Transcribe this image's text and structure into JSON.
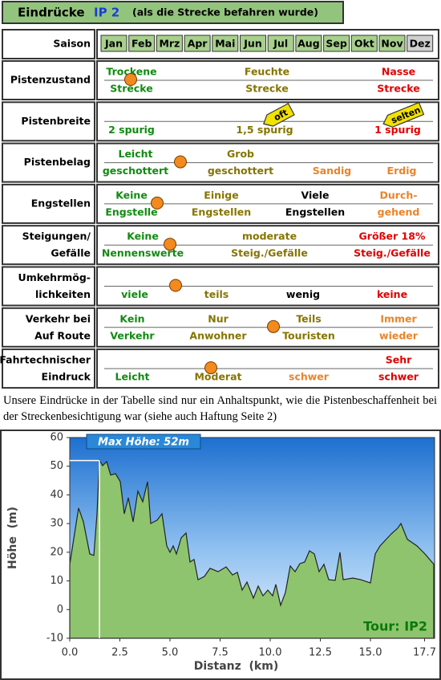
{
  "header": {
    "title": "Eindrücke",
    "route": "IP 2",
    "subtitle": "(als die Strecke befahren wurde)"
  },
  "table": {
    "season": {
      "label": "Saison",
      "months": [
        "Jan",
        "Feb",
        "Mrz",
        "Apr",
        "Mai",
        "Jun",
        "Jul",
        "Aug",
        "Sep",
        "Okt",
        "Nov",
        "Dez"
      ],
      "in_season": [
        true,
        true,
        true,
        true,
        true,
        true,
        true,
        true,
        true,
        true,
        true,
        false
      ]
    },
    "rows": [
      {
        "label": [
          "Pistenzustand"
        ],
        "options": [
          {
            "top": "Trockene",
            "bottom": "Strecke",
            "color": "#118a11"
          },
          {
            "top": "Feuchte",
            "bottom": "Strecke",
            "color": "#857400"
          },
          {
            "top": "Nasse",
            "bottom": "Strecke",
            "color": "#e00000"
          }
        ]
      },
      {
        "label": [
          "Pistenbreite"
        ],
        "options": [
          {
            "bottom": "2 spurig",
            "color": "#118a11"
          },
          {
            "bottom": "1,5 spurig",
            "color": "#857400"
          },
          {
            "bottom": "1 spurig",
            "color": "#e00000"
          }
        ],
        "tags": [
          "oft",
          "selten"
        ]
      },
      {
        "label": [
          "Pistenbelag"
        ],
        "options": [
          {
            "top": "Leicht",
            "bottom": "geschottert",
            "color": "#118a11"
          },
          {
            "top": "Grob",
            "bottom": "geschottert",
            "color": "#857400"
          },
          {
            "bottom": "Sandig",
            "color": "#e8842a"
          },
          {
            "bottom": "Erdig",
            "color": "#e8842a"
          }
        ]
      },
      {
        "label": [
          "Engstellen"
        ],
        "options": [
          {
            "top": "Keine",
            "bottom": "Engstelle",
            "color": "#118a11"
          },
          {
            "top": "Einige",
            "bottom": "Engstellen",
            "color": "#857400"
          },
          {
            "top": "Viele",
            "bottom": "Engstellen",
            "color": "#000000"
          },
          {
            "top": "Durch-",
            "bottom": "gehend",
            "color": "#e8842a"
          }
        ]
      },
      {
        "label": [
          "Steigungen/",
          "Gefälle"
        ],
        "options": [
          {
            "top": "Keine",
            "bottom": "Nennenswerte",
            "color": "#118a11"
          },
          {
            "top": "moderate",
            "bottom": "Steig./Gefälle",
            "color": "#857400"
          },
          {
            "top": "Größer 18%",
            "bottom": "Steig./Gefälle",
            "color": "#e00000"
          }
        ]
      },
      {
        "label": [
          "Umkehrmög-",
          "lichkeiten"
        ],
        "options": [
          {
            "bottom": "viele",
            "color": "#118a11"
          },
          {
            "bottom": "teils",
            "color": "#857400"
          },
          {
            "bottom": "wenig",
            "color": "#000000"
          },
          {
            "bottom": "keine",
            "color": "#e00000"
          }
        ]
      },
      {
        "label": [
          "Verkehr bei",
          "Auf Route"
        ],
        "options": [
          {
            "top": "Kein",
            "bottom": "Verkehr",
            "color": "#118a11"
          },
          {
            "top": "Nur",
            "bottom": "Anwohner",
            "color": "#857400"
          },
          {
            "top": "Teils",
            "bottom": "Touristen",
            "color": "#857400"
          },
          {
            "top": "Immer",
            "bottom": "wieder",
            "color": "#e8842a"
          }
        ]
      },
      {
        "label": [
          "Fahrtechnischer",
          "Eindruck"
        ],
        "options": [
          {
            "bottom": "Leicht",
            "color": "#118a11"
          },
          {
            "bottom": "Moderat",
            "color": "#857400"
          },
          {
            "bottom": "schwer",
            "color": "#e8842a"
          },
          {
            "top": "Sehr",
            "bottom": "schwer",
            "color": "#e00000"
          }
        ]
      }
    ]
  },
  "note": "Unsere Eindrücke in der Tabelle sind nur ein Anhaltspunkt, wie die Pistenbeschaffenheit bei der Streckenbesichtigung war (siehe auch Haftung Seite 2)",
  "chart_data": {
    "type": "area",
    "color": "#8fc46e",
    "x": [
      0,
      0.44,
      0.68,
      1.0,
      1.2,
      1.36,
      1.48,
      1.64,
      1.84,
      2.04,
      2.28,
      2.52,
      2.72,
      2.92,
      3.16,
      3.4,
      3.64,
      3.88,
      4.04,
      4.36,
      4.6,
      4.84,
      5.0,
      5.16,
      5.32,
      5.56,
      5.8,
      6.0,
      6.2,
      6.4,
      6.72,
      7.0,
      7.4,
      7.8,
      8.12,
      8.36,
      8.6,
      8.84,
      9.16,
      9.4,
      9.64,
      9.88,
      10.12,
      10.28,
      10.52,
      10.76,
      11.0,
      11.24,
      11.48,
      11.72,
      11.96,
      12.2,
      12.44,
      12.68,
      12.92,
      13.24,
      13.48,
      13.64,
      14.12,
      14.52,
      15.0,
      15.24,
      15.48,
      16.04,
      16.36,
      16.52,
      16.84,
      17.32,
      17.72,
      18.16
    ],
    "values": [
      15.8,
      35.4,
      30.6,
      19.4,
      18.9,
      33.4,
      52,
      50.2,
      51.6,
      46.9,
      47.4,
      44.6,
      33.4,
      39,
      30.6,
      41.3,
      37.6,
      44.6,
      30,
      31.2,
      33.4,
      22.2,
      20,
      22.2,
      19.4,
      25,
      26.7,
      16.6,
      17.5,
      10.4,
      11.6,
      14.4,
      13.2,
      14.9,
      12.1,
      13,
      6.8,
      9.6,
      4,
      8.2,
      4.8,
      6.8,
      4.8,
      8.8,
      1.5,
      6,
      15.2,
      13.2,
      16,
      16.6,
      20.5,
      19.4,
      13.2,
      15.8,
      10.4,
      10.2,
      20,
      10.4,
      11,
      10.4,
      9.3,
      19.4,
      22.2,
      26.4,
      28.4,
      30,
      24.5,
      22.2,
      19.4,
      15.8
    ],
    "xlim": [
      0,
      18.2
    ],
    "ylim": [
      -10,
      60
    ],
    "xticks": [
      {
        "value": 0,
        "label": "0.0"
      },
      2.5,
      {
        "value": 5,
        "label": "5.0"
      },
      7.5,
      {
        "value": 10,
        "label": "10.0"
      },
      12.5,
      {
        "value": 15,
        "label": "15.0"
      },
      17.7
    ],
    "yticks": [
      -10,
      0,
      10,
      20,
      30,
      40,
      50,
      60
    ],
    "xlabel": "Distanz  (km)",
    "ylabel": "Höhe  (m)",
    "annotations": [
      "Max Höhe: 52m",
      "Tour: IP2"
    ]
  }
}
